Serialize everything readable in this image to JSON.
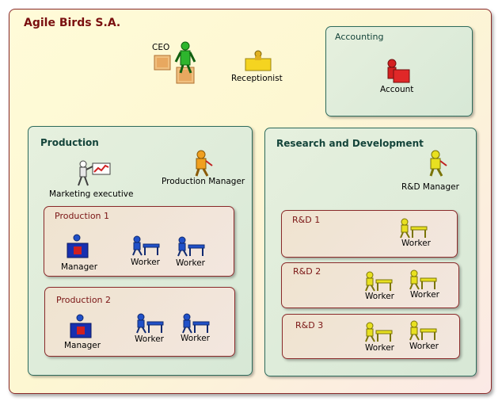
{
  "company": {
    "title": "Agile Birds S.A."
  },
  "top": {
    "ceo": "CEO",
    "receptionist": "Receptionist"
  },
  "accounting": {
    "title": "Accounting",
    "account": "Account"
  },
  "production": {
    "title": "Production",
    "marketing": "Marketing executive",
    "manager": "Production Manager",
    "p1": {
      "title": "Production 1",
      "manager": "Manager",
      "worker1": "Worker",
      "worker2": "Worker"
    },
    "p2": {
      "title": "Production 2",
      "manager": "Manager",
      "worker1": "Worker",
      "worker2": "Worker"
    }
  },
  "rnd": {
    "title": "Research and Development",
    "manager": "R&D Manager",
    "r1": {
      "title": "R&D 1",
      "worker1": "Worker"
    },
    "r2": {
      "title": "R&D 2",
      "worker1": "Worker",
      "worker2": "Worker"
    },
    "r3": {
      "title": "R&D 3",
      "worker1": "Worker",
      "worker2": "Worker"
    }
  },
  "colors": {
    "ceo": "#2db52d",
    "account": "#d42020",
    "production_manager": "#f0a020",
    "rnd_worker": "#e8e020",
    "production_worker": "#2050c8"
  }
}
